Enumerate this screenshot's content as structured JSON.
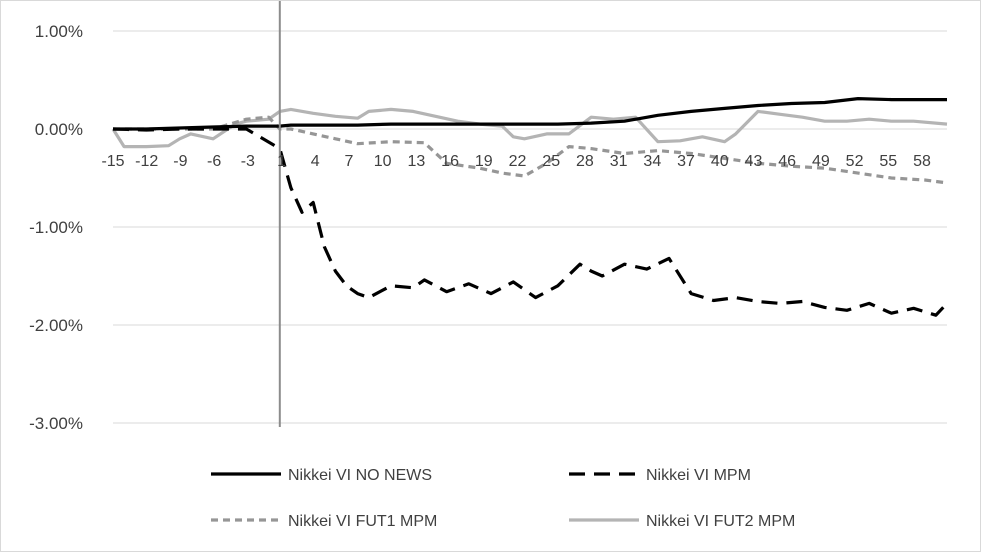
{
  "chart_data": {
    "type": "line",
    "title": "",
    "xlabel": "",
    "ylabel": "",
    "ylim": [
      -0.03,
      0.01
    ],
    "y_ticks": [
      0.01,
      0.0,
      -0.01,
      -0.02,
      -0.03
    ],
    "y_tick_labels": [
      "1.00%",
      "0.00%",
      "-1.00%",
      "-2.00%",
      "-3.00%"
    ],
    "x_range": [
      -15,
      60
    ],
    "x_tick_labels": [
      "-15",
      "-12",
      "-9",
      "-6",
      "-3",
      "1",
      "4",
      "7",
      "10",
      "13",
      "16",
      "19",
      "22",
      "25",
      "28",
      "31",
      "34",
      "37",
      "40",
      "43",
      "46",
      "49",
      "52",
      "55",
      "58"
    ],
    "event_marker_x": 0,
    "grid": "horizontal",
    "legend_position": "bottom",
    "series": [
      {
        "name": "Nikkei VI NO NEWS",
        "color": "#000000",
        "dash": "solid",
        "x": [
          -15,
          -12,
          -9,
          -6,
          -3,
          0,
          1,
          4,
          7,
          10,
          13,
          16,
          19,
          22,
          25,
          28,
          31,
          34,
          37,
          40,
          43,
          46,
          49,
          52,
          55,
          58,
          60
        ],
        "values": [
          0.0,
          0.0,
          0.0001,
          0.0002,
          0.0003,
          0.0003,
          0.0004,
          0.0004,
          0.0004,
          0.0005,
          0.0005,
          0.0005,
          0.0005,
          0.0005,
          0.0005,
          0.0006,
          0.0008,
          0.0014,
          0.0018,
          0.0021,
          0.0024,
          0.0026,
          0.0027,
          0.0031,
          0.003,
          0.003,
          0.003
        ]
      },
      {
        "name": "Nikkei VI MPM",
        "color": "#000000",
        "dash": "long-dash",
        "x": [
          -15,
          -12,
          -9,
          -6,
          -3,
          0,
          1,
          2,
          3,
          4,
          5,
          6,
          7,
          8,
          10,
          12,
          13,
          15,
          17,
          19,
          21,
          23,
          25,
          27,
          28,
          29,
          31,
          33,
          35,
          37,
          39,
          41,
          43,
          45,
          47,
          49,
          51,
          53,
          55,
          57,
          59,
          60
        ],
        "values": [
          0.0,
          -0.0001,
          0.0,
          0.0,
          0.0,
          -0.002,
          -0.006,
          -0.0085,
          -0.0075,
          -0.012,
          -0.0145,
          -0.016,
          -0.0168,
          -0.0172,
          -0.016,
          -0.0162,
          -0.0154,
          -0.0166,
          -0.0158,
          -0.0168,
          -0.0156,
          -0.0172,
          -0.016,
          -0.0138,
          -0.0145,
          -0.015,
          -0.0138,
          -0.0143,
          -0.0132,
          -0.0168,
          -0.0175,
          -0.0172,
          -0.0176,
          -0.0178,
          -0.0176,
          -0.0182,
          -0.0185,
          -0.0178,
          -0.0188,
          -0.0183,
          -0.019,
          -0.0178
        ]
      },
      {
        "name": "Nikkei VI FUT1 MPM",
        "color": "#969696",
        "dash": "short-dash",
        "x": [
          -15,
          -12,
          -9,
          -6,
          -3,
          -1,
          0,
          1,
          3,
          5,
          7,
          10,
          13,
          15,
          18,
          20,
          22,
          24,
          26,
          28,
          31,
          34,
          37,
          40,
          43,
          46,
          49,
          52,
          55,
          58,
          60
        ],
        "values": [
          0.0,
          0.0,
          0.0,
          0.0,
          0.001,
          0.0012,
          0.0,
          0.0,
          -0.0005,
          -0.001,
          -0.0015,
          -0.0013,
          -0.0014,
          -0.0035,
          -0.004,
          -0.0045,
          -0.0048,
          -0.0035,
          -0.0018,
          -0.002,
          -0.0025,
          -0.0022,
          -0.0025,
          -0.003,
          -0.0035,
          -0.0038,
          -0.004,
          -0.0045,
          -0.005,
          -0.0052,
          -0.0055
        ]
      },
      {
        "name": "Nikkei VI FUT2 MPM",
        "color": "#b4b4b4",
        "dash": "solid",
        "x": [
          -15,
          -14,
          -12,
          -10,
          -9,
          -8,
          -6,
          -4,
          -3,
          -1,
          0,
          1,
          3,
          5,
          7,
          8,
          10,
          12,
          14,
          16,
          18,
          20,
          21,
          22,
          24,
          26,
          28,
          30,
          32,
          34,
          36,
          38,
          40,
          41,
          43,
          45,
          47,
          49,
          51,
          53,
          55,
          57,
          60
        ],
        "values": [
          0.0,
          -0.0018,
          -0.0018,
          -0.0017,
          -0.001,
          -0.0005,
          -0.001,
          0.0005,
          0.0008,
          0.001,
          0.0018,
          0.002,
          0.0016,
          0.0013,
          0.0011,
          0.0018,
          0.002,
          0.0018,
          0.0013,
          0.0008,
          0.0005,
          0.0003,
          -0.0008,
          -0.001,
          -0.0005,
          -0.0005,
          0.0012,
          0.001,
          0.0012,
          -0.0013,
          -0.0012,
          -0.0008,
          -0.0013,
          -0.0005,
          0.0018,
          0.0015,
          0.0012,
          0.0008,
          0.0008,
          0.001,
          0.0008,
          0.0008,
          0.0005
        ]
      }
    ]
  }
}
